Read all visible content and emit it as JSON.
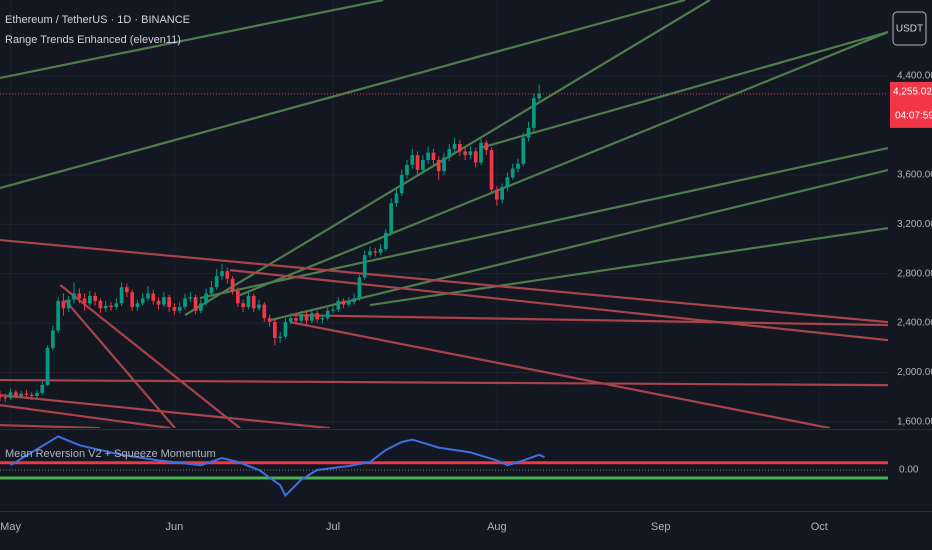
{
  "header": {
    "symbol": "Ethereum / TetherUS · 1D · BINANCE",
    "indicator": "Range Trends Enhanced (eleven11)",
    "currency_button": "USDT"
  },
  "chart_data": [
    {
      "type": "candlestick",
      "up_color": "#089981",
      "down_color": "#f23645",
      "grid": true,
      "xlim": [
        0,
        168
      ],
      "xticks": [
        {
          "value": 2,
          "label": "May"
        },
        {
          "value": 33,
          "label": "Jun"
        },
        {
          "value": 63,
          "label": "Jul"
        },
        {
          "value": 94,
          "label": "Aug"
        },
        {
          "value": 125,
          "label": "Sep"
        },
        {
          "value": 155,
          "label": "Oct"
        }
      ],
      "ylim": [
        1551,
        5015
      ],
      "yticks": [
        {
          "value": 1600,
          "label": "1,600.00"
        },
        {
          "value": 2000,
          "label": "2,000.00"
        },
        {
          "value": 2400,
          "label": "2,400.00"
        },
        {
          "value": 2800,
          "label": "2,800.00"
        },
        {
          "value": 3200,
          "label": "3,200.00"
        },
        {
          "value": 3600,
          "label": "3,600.00"
        },
        {
          "value": 4400,
          "label": "4,400.00"
        }
      ],
      "open": [
        1810,
        1800,
        1795,
        1840,
        1810,
        1830,
        1820,
        1810,
        1835,
        1900,
        2200,
        2340,
        2580,
        2520,
        2590,
        2640,
        2600,
        2560,
        2620,
        2580,
        2520,
        2540,
        2530,
        2560,
        2690,
        2650,
        2530,
        2560,
        2600,
        2640,
        2580,
        2550,
        2610,
        2530,
        2500,
        2530,
        2600,
        2610,
        2500,
        2560,
        2640,
        2690,
        2780,
        2820,
        2760,
        2660,
        2560,
        2530,
        2620,
        2520,
        2550,
        2440,
        2410,
        2280,
        2290,
        2410,
        2440,
        2420,
        2470,
        2420,
        2480,
        2430,
        2440,
        2500,
        2510,
        2580,
        2550,
        2570,
        2600,
        2770,
        2950,
        2980,
        2970,
        3000,
        3130,
        3370,
        3450,
        3600,
        3680,
        3760,
        3640,
        3720,
        3780,
        3720,
        3630,
        3740,
        3810,
        3850,
        3790,
        3760,
        3790,
        3700,
        3860,
        3800,
        3480,
        3400,
        3500,
        3580,
        3650,
        3690,
        3900,
        3980,
        4220
      ],
      "high": [
        1850,
        1830,
        1870,
        1860,
        1850,
        1860,
        1840,
        1860,
        1930,
        2220,
        2380,
        2610,
        2640,
        2620,
        2730,
        2680,
        2640,
        2660,
        2650,
        2600,
        2580,
        2570,
        2600,
        2730,
        2720,
        2670,
        2590,
        2640,
        2700,
        2670,
        2610,
        2650,
        2630,
        2560,
        2570,
        2640,
        2650,
        2630,
        2590,
        2680,
        2740,
        2840,
        2880,
        2850,
        2780,
        2690,
        2590,
        2650,
        2640,
        2590,
        2570,
        2470,
        2430,
        2330,
        2440,
        2480,
        2470,
        2500,
        2490,
        2510,
        2500,
        2470,
        2530,
        2550,
        2610,
        2600,
        2610,
        2640,
        2790,
        2990,
        3020,
        3010,
        3040,
        3160,
        3410,
        3490,
        3640,
        3720,
        3810,
        3790,
        3760,
        3830,
        3810,
        3750,
        3780,
        3850,
        3900,
        3880,
        3830,
        3830,
        3820,
        3890,
        3880,
        3820,
        3510,
        3530,
        3620,
        3690,
        3730,
        3940,
        4030,
        4260,
        4330
      ],
      "low": [
        1770,
        1760,
        1780,
        1790,
        1790,
        1800,
        1780,
        1790,
        1820,
        1890,
        2180,
        2320,
        2460,
        2490,
        2560,
        2560,
        2500,
        2540,
        2540,
        2480,
        2490,
        2500,
        2510,
        2540,
        2610,
        2500,
        2500,
        2540,
        2580,
        2550,
        2510,
        2530,
        2490,
        2470,
        2480,
        2510,
        2570,
        2470,
        2480,
        2540,
        2620,
        2670,
        2750,
        2720,
        2630,
        2530,
        2490,
        2510,
        2490,
        2500,
        2410,
        2370,
        2220,
        2240,
        2270,
        2390,
        2390,
        2400,
        2390,
        2400,
        2400,
        2400,
        2420,
        2480,
        2490,
        2520,
        2530,
        2550,
        2580,
        2750,
        2930,
        2940,
        2950,
        2980,
        3110,
        3340,
        3430,
        3570,
        3650,
        3590,
        3610,
        3690,
        3680,
        3560,
        3600,
        3710,
        3780,
        3750,
        3720,
        3730,
        3660,
        3680,
        3760,
        3450,
        3350,
        3370,
        3470,
        3560,
        3620,
        3670,
        3870,
        3950,
        4180
      ],
      "close": [
        1800,
        1795,
        1840,
        1810,
        1830,
        1820,
        1810,
        1835,
        1900,
        2200,
        2340,
        2580,
        2520,
        2590,
        2640,
        2600,
        2560,
        2620,
        2580,
        2520,
        2540,
        2530,
        2560,
        2690,
        2650,
        2530,
        2560,
        2600,
        2640,
        2580,
        2550,
        2610,
        2530,
        2500,
        2530,
        2600,
        2610,
        2500,
        2560,
        2640,
        2690,
        2780,
        2820,
        2760,
        2660,
        2560,
        2530,
        2620,
        2520,
        2550,
        2440,
        2410,
        2280,
        2290,
        2410,
        2440,
        2420,
        2470,
        2420,
        2480,
        2430,
        2440,
        2500,
        2510,
        2580,
        2550,
        2570,
        2600,
        2770,
        2950,
        2980,
        2970,
        3000,
        3130,
        3370,
        3450,
        3600,
        3680,
        3760,
        3640,
        3720,
        3780,
        3720,
        3630,
        3740,
        3810,
        3850,
        3790,
        3760,
        3790,
        3700,
        3860,
        3800,
        3480,
        3400,
        3500,
        3580,
        3650,
        3690,
        3900,
        3980,
        4220,
        4255.02
      ],
      "price_tag": {
        "value": 4255.02,
        "label": "4,255.02",
        "countdown": "04:07:59",
        "color": "#f23645"
      },
      "trendlines": [
        {
          "color": "#4e7d4c",
          "points": [
            [
              0,
              4384
            ],
            [
              72.5,
              5015
            ]
          ]
        },
        {
          "color": "#4e7d4c",
          "points": [
            [
              0,
              3493
            ],
            [
              129.6,
              5015
            ]
          ]
        },
        {
          "color": "#4e7d4c",
          "points": [
            [
              35,
              2465
            ],
            [
              134.3,
              5015
            ]
          ]
        },
        {
          "color": "#4e7d4c",
          "points": [
            [
              45.4,
              2627
            ],
            [
              168,
              4756
            ]
          ]
        },
        {
          "color": "#4e7d4c",
          "points": [
            [
              37.8,
              2603
            ],
            [
              168,
              3817
            ]
          ]
        },
        {
          "color": "#4e7d4c",
          "points": [
            [
              51.1,
              2424
            ],
            [
              168,
              3639
            ]
          ]
        },
        {
          "color": "#4e7d4c",
          "points": [
            [
              70,
              2546
            ],
            [
              168,
              3169
            ]
          ]
        },
        {
          "color": "#4e7d4c",
          "points": [
            [
              90.8,
              3817
            ],
            [
              168,
              4756
            ]
          ]
        },
        {
          "color": "#a8434a",
          "points": [
            [
              0,
              3072
            ],
            [
              168,
              2408
            ]
          ]
        },
        {
          "color": "#a8434a",
          "points": [
            [
              43.5,
              2829
            ],
            [
              168,
              2262
            ]
          ]
        },
        {
          "color": "#a8434a",
          "points": [
            [
              54.9,
              2465
            ],
            [
              168,
              2384
            ]
          ]
        },
        {
          "color": "#a8434a",
          "points": [
            [
              11.4,
              2708
            ],
            [
              45.4,
              1550
            ]
          ]
        },
        {
          "color": "#a8434a",
          "points": [
            [
              12.3,
              2586
            ],
            [
              33.1,
              1550
            ]
          ]
        },
        {
          "color": "#a8434a",
          "points": [
            [
              0,
              1939
            ],
            [
              168,
              1898
            ]
          ]
        },
        {
          "color": "#a8434a",
          "points": [
            [
              0,
              1817
            ],
            [
              62.4,
              1550
            ]
          ]
        },
        {
          "color": "#a8434a",
          "points": [
            [
              0,
              1736
            ],
            [
              32.2,
              1550
            ]
          ]
        },
        {
          "color": "#a8434a",
          "points": [
            [
              54.9,
              2408
            ],
            [
              157,
              1550
            ]
          ]
        },
        {
          "color": "#a8434a",
          "points": [
            [
              0,
              1574
            ],
            [
              18.9,
              1550
            ]
          ]
        }
      ]
    },
    {
      "type": "line",
      "title": "Mean Reversion V2 + Squeeze Momentum",
      "xlim": [
        0,
        168
      ],
      "ylim": [
        -5,
        5
      ],
      "yticks": [
        {
          "value": 0,
          "label": "0.00"
        }
      ],
      "series": [
        {
          "color": "#3d6fe0",
          "x": [
            2,
            11,
            15,
            23,
            30,
            38,
            42,
            45,
            49,
            53,
            54,
            57,
            60,
            66,
            70,
            73,
            76,
            78,
            83,
            89,
            94,
            96,
            99,
            102,
            103
          ],
          "values": [
            0.6,
            4.2,
            3.1,
            1.9,
            1.2,
            0.6,
            1.5,
            1.0,
            0.0,
            -1.9,
            -3.2,
            -1.2,
            0.0,
            0.5,
            1.0,
            2.5,
            3.5,
            3.8,
            2.8,
            2.2,
            1.2,
            0.6,
            1.2,
            1.9,
            1.6
          ]
        }
      ],
      "levels": [
        {
          "value": 0.9,
          "color": "#f23645"
        },
        {
          "value": -1,
          "color": "#4caf50"
        }
      ]
    }
  ]
}
